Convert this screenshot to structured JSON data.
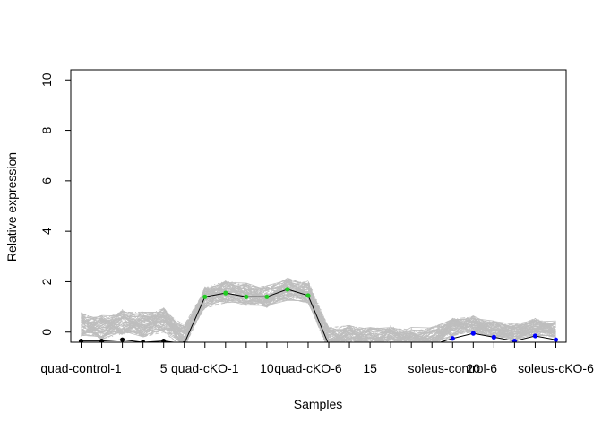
{
  "chart_data": {
    "type": "line",
    "title": "",
    "xlabel": "Samples",
    "ylabel": "Relative expression",
    "xlim": [
      0.5,
      24.5
    ],
    "ylim": [
      -0.4,
      10.4
    ],
    "yticks": [
      0,
      2,
      4,
      6,
      8,
      10
    ],
    "xtick_labels": [
      {
        "x": 1,
        "label": "quad-control-1"
      },
      {
        "x": 5,
        "label": "5"
      },
      {
        "x": 7,
        "label": "quad-cKO-1"
      },
      {
        "x": 10,
        "label": "10"
      },
      {
        "x": 12,
        "label": "quad-cKO-6"
      },
      {
        "x": 15,
        "label": "15"
      },
      {
        "x": 19,
        "label": "soleus-control-6"
      },
      {
        "x": 20,
        "label": "20"
      },
      {
        "x": 24,
        "label": "soleus-cKO-6"
      }
    ],
    "highlight_series": {
      "x": [
        1,
        2,
        3,
        4,
        5,
        6,
        7,
        8,
        9,
        10,
        11,
        12,
        13,
        14,
        15,
        16,
        17,
        18,
        19,
        20,
        21,
        22,
        23,
        24
      ],
      "values": [
        -0.35,
        -0.35,
        -0.3,
        -0.4,
        -0.35,
        -0.45,
        1.4,
        1.55,
        1.4,
        1.4,
        1.7,
        1.45,
        -0.5,
        -0.5,
        -0.5,
        -0.5,
        -0.5,
        -0.5,
        -0.25,
        -0.05,
        -0.2,
        -0.35,
        -0.15,
        -0.3
      ],
      "point_colors": [
        "#000000",
        "#000000",
        "#000000",
        "#000000",
        "#000000",
        "#000000",
        "#22cc22",
        "#22cc22",
        "#22cc22",
        "#22cc22",
        "#22cc22",
        "#22cc22",
        "#22cc22",
        "#22cc22",
        "#22cc22",
        "#22cc22",
        "#22cc22",
        "#22cc22",
        "#0000ff",
        "#0000ff",
        "#0000ff",
        "#0000ff",
        "#0000ff",
        "#0000ff"
      ]
    },
    "background_series_profile": {
      "x": [
        1,
        2,
        3,
        4,
        5,
        6,
        7,
        8,
        9,
        10,
        11,
        12,
        13,
        14,
        15,
        16,
        17,
        18,
        19,
        20,
        21,
        22,
        23,
        24
      ],
      "values": [
        0.3,
        0.2,
        0.4,
        0.3,
        0.5,
        -0.2,
        1.4,
        1.6,
        1.5,
        1.4,
        1.7,
        1.6,
        -0.3,
        -0.2,
        -0.3,
        -0.25,
        -0.3,
        -0.3,
        0.2,
        0.3,
        0.1,
        0.0,
        0.2,
        0.1
      ]
    },
    "colors": {
      "background_lines": "#bebebe",
      "highlight_line": "#000000"
    }
  }
}
